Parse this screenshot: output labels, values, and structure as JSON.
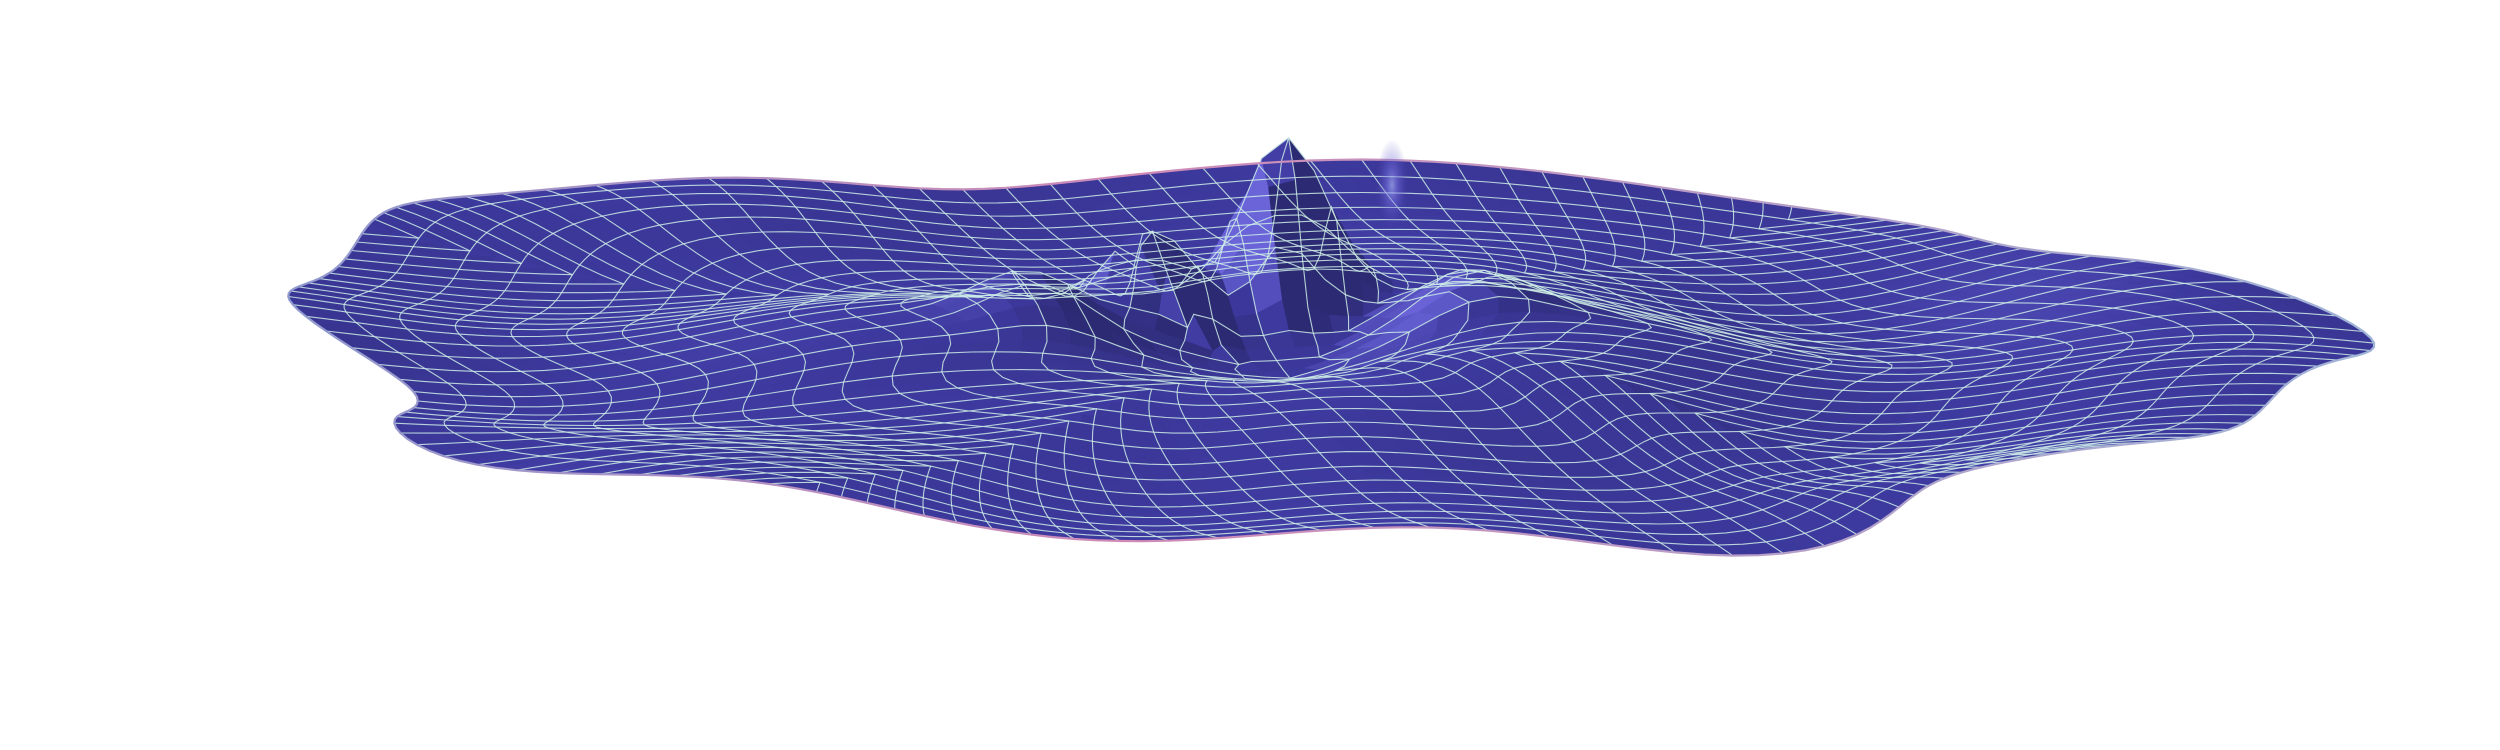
{
  "scene": {
    "subject": "wireframe-wave-surface",
    "colors": {
      "background": "#ffffff",
      "surface_dark": "#2c2a72",
      "surface_mid": "#3e3aa0",
      "surface_light": "#6a64d8",
      "highlight": "#9aa6ff",
      "mesh_line": "#cfeee8",
      "rim": "#c98fb4"
    }
  }
}
